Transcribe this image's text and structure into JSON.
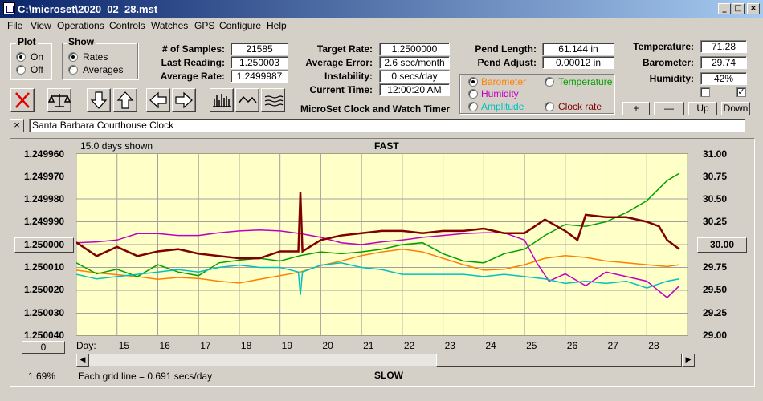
{
  "window": {
    "title": "C:\\microset\\2020_02_28.mst",
    "minimize": "_",
    "maximize": "□",
    "close": "×"
  },
  "menu": [
    "File",
    "View",
    "Operations",
    "Controls",
    "Watches",
    "GPS",
    "Configure",
    "Help"
  ],
  "plot_group": {
    "title": "Plot",
    "on": "On",
    "off": "Off",
    "selected": "On"
  },
  "show_group": {
    "title": "Show",
    "rates": "Rates",
    "averages": "Averages",
    "selected": "Rates"
  },
  "stats": {
    "samples_label": "# of Samples:",
    "samples": "21585",
    "last_reading_label": "Last Reading:",
    "last_reading": "1.250003",
    "avg_rate_label": "Average Rate:",
    "avg_rate": "1.2499987",
    "target_rate_label": "Target Rate:",
    "target_rate": "1.2500000",
    "avg_error_label": "Average Error:",
    "avg_error": "2.6 sec/month",
    "instability_label": "Instability:",
    "instability": "0 secs/day",
    "current_time_label": "Current Time:",
    "current_time": "12:00:20 AM",
    "pend_length_label": "Pend Length:",
    "pend_length": "61.144 in",
    "pend_adjust_label": "Pend Adjust:",
    "pend_adjust": "0.00012 in",
    "temperature_label": "Temperature:",
    "temperature": "71.28",
    "barometer_label": "Barometer:",
    "barometer": "29.74",
    "humidity_label": "Humidity:",
    "humidity": "42%"
  },
  "app_name": "MicroSet Clock and Watch Timer",
  "overlay_options": {
    "barometer": {
      "label": "Barometer",
      "color": "#ff8000",
      "selected": true
    },
    "temperature": {
      "label": "Temperature",
      "color": "#00a000",
      "selected": false
    },
    "humidity": {
      "label": "Humidity",
      "color": "#c000c0",
      "selected": false
    },
    "amplitude": {
      "label": "Amplitude",
      "color": "#00c0c0",
      "selected": false
    },
    "clock_rate": {
      "label": "Clock rate",
      "color": "#800000",
      "selected": false
    }
  },
  "scale_buttons": {
    "plus": "+",
    "minus": "—",
    "up": "Up",
    "down": "Down"
  },
  "checkboxes": {
    "left": false,
    "right": true,
    "right_mark": "✓"
  },
  "clock_name": "Santa Barbara Courthouse Clock",
  "clear_x": "×",
  "graph": {
    "days_shown": "15.0 days shown",
    "fast": "FAST",
    "slow": "SLOW",
    "center_value": "1.250000",
    "right_center_value": "30.00",
    "offset_value": "0",
    "footer_pct": "1.69%",
    "grid_note": "Each grid line = 0.691 secs/day",
    "day_label": "Day:"
  },
  "chart_data": {
    "type": "line",
    "x_label": "Day",
    "x_ticks": [
      "15",
      "16",
      "17",
      "18",
      "19",
      "20",
      "21",
      "22",
      "23",
      "24",
      "25",
      "26",
      "27",
      "28"
    ],
    "xlim": [
      14.0,
      29.0
    ],
    "y_left_ticks": [
      "1.249960",
      "1.249970",
      "1.249980",
      "1.249990",
      "",
      "1.250010",
      "1.250020",
      "1.250030",
      "1.250040"
    ],
    "ylim_left": [
      1.24996,
      1.25004
    ],
    "y_right_ticks": [
      "31.00",
      "30.75",
      "30.50",
      "30.25",
      "",
      "29.75",
      "29.50",
      "29.25",
      "29.00"
    ],
    "ylim_right": [
      31.0,
      29.0
    ],
    "grid": true,
    "series": [
      {
        "name": "Barometer",
        "color": "#ff8000",
        "axis": "right",
        "x": [
          14.0,
          14.5,
          15.0,
          15.5,
          16.0,
          16.5,
          17.0,
          17.5,
          18.0,
          18.5,
          19.0,
          19.5,
          20.0,
          20.5,
          21.0,
          21.5,
          22.0,
          22.5,
          23.0,
          23.5,
          24.0,
          24.5,
          25.0,
          25.5,
          26.0,
          26.5,
          27.0,
          27.5,
          28.0,
          28.5,
          28.8
        ],
        "y": [
          29.72,
          29.69,
          29.67,
          29.65,
          29.62,
          29.64,
          29.63,
          29.6,
          29.58,
          29.62,
          29.66,
          29.7,
          29.77,
          29.82,
          29.88,
          29.92,
          29.95,
          29.92,
          29.85,
          29.78,
          29.72,
          29.73,
          29.78,
          29.85,
          29.88,
          29.86,
          29.82,
          29.8,
          29.78,
          29.76,
          29.78
        ]
      },
      {
        "name": "Temperature",
        "color": "#00a000",
        "axis": "right",
        "x": [
          14.0,
          14.5,
          15.0,
          15.5,
          16.0,
          16.5,
          17.0,
          17.5,
          18.0,
          18.5,
          19.0,
          19.5,
          20.0,
          20.5,
          21.0,
          21.5,
          22.0,
          22.5,
          23.0,
          23.5,
          24.0,
          24.5,
          25.0,
          25.5,
          26.0,
          26.5,
          27.0,
          27.5,
          28.0,
          28.5,
          28.8
        ],
        "y": [
          29.8,
          29.68,
          29.73,
          29.65,
          29.78,
          29.7,
          29.66,
          29.8,
          29.83,
          29.85,
          29.82,
          29.88,
          29.92,
          29.9,
          29.92,
          29.95,
          30.0,
          30.02,
          29.9,
          29.82,
          29.8,
          29.9,
          29.95,
          30.1,
          30.22,
          30.2,
          30.25,
          30.35,
          30.48,
          30.7,
          30.78
        ]
      },
      {
        "name": "Humidity",
        "color": "#c000c0",
        "axis": "right",
        "x": [
          14.0,
          14.5,
          15.0,
          15.5,
          16.0,
          16.5,
          17.0,
          17.5,
          18.0,
          18.5,
          19.0,
          19.5,
          20.0,
          20.5,
          21.0,
          21.5,
          22.0,
          22.5,
          23.0,
          23.5,
          24.0,
          24.5,
          25.0,
          25.3,
          25.6,
          26.0,
          26.5,
          27.0,
          27.5,
          28.0,
          28.5,
          28.8
        ],
        "y": [
          30.02,
          30.03,
          30.05,
          30.12,
          30.12,
          30.1,
          30.1,
          30.13,
          30.15,
          30.16,
          30.15,
          30.12,
          30.08,
          30.02,
          30.0,
          30.03,
          30.05,
          30.08,
          30.1,
          30.12,
          30.13,
          30.13,
          30.05,
          29.8,
          29.6,
          29.68,
          29.55,
          29.7,
          29.65,
          29.6,
          29.42,
          29.55
        ]
      },
      {
        "name": "Amplitude",
        "color": "#00c0c0",
        "axis": "left",
        "x": [
          14.0,
          14.5,
          15.0,
          15.5,
          16.0,
          16.5,
          17.0,
          17.5,
          18.0,
          18.5,
          19.0,
          19.45,
          19.5,
          19.55,
          20.0,
          20.5,
          21.0,
          21.5,
          22.0,
          22.5,
          23.0,
          23.5,
          24.0,
          24.5,
          25.0,
          25.5,
          26.0,
          26.5,
          27.0,
          27.5,
          28.0,
          28.5,
          28.8
        ],
        "y": [
          1.250013,
          1.250015,
          1.250014,
          1.250013,
          1.250012,
          1.250011,
          1.250012,
          1.25001,
          1.250009,
          1.25001,
          1.25001,
          1.250012,
          1.250022,
          1.250012,
          1.250009,
          1.250008,
          1.25001,
          1.250011,
          1.250013,
          1.250013,
          1.250013,
          1.250013,
          1.250014,
          1.250013,
          1.250014,
          1.250015,
          1.250017,
          1.250016,
          1.250017,
          1.250016,
          1.250019,
          1.250016,
          1.250015
        ]
      },
      {
        "name": "Clock rate",
        "color": "#800000",
        "axis": "left",
        "x": [
          14.0,
          14.5,
          15.0,
          15.5,
          16.0,
          16.5,
          17.0,
          17.5,
          18.0,
          18.5,
          19.0,
          19.45,
          19.5,
          19.55,
          20.0,
          20.5,
          21.0,
          21.5,
          22.0,
          22.5,
          23.0,
          23.5,
          24.0,
          24.5,
          25.0,
          25.5,
          26.0,
          26.3,
          26.5,
          27.0,
          27.5,
          28.0,
          28.3,
          28.5,
          28.8
        ],
        "y": [
          1.249999,
          1.250005,
          1.250001,
          1.250005,
          1.250003,
          1.250002,
          1.250004,
          1.250005,
          1.250006,
          1.250006,
          1.250003,
          1.250003,
          1.249977,
          1.250003,
          1.249998,
          1.249996,
          1.249995,
          1.249994,
          1.249994,
          1.249995,
          1.249994,
          1.249994,
          1.249993,
          1.249995,
          1.249995,
          1.249989,
          1.249994,
          1.249998,
          1.249987,
          1.249988,
          1.249988,
          1.24999,
          1.249992,
          1.249998,
          1.250002
        ]
      }
    ]
  },
  "icons": {
    "app": "app-icon",
    "reset": "x-icon",
    "balance": "balance-icon",
    "down": "down-arrow-icon",
    "up": "up-arrow-icon",
    "left": "left-arrow-icon",
    "right": "right-arrow-icon",
    "bars": "bar-graph-icon",
    "wave": "wave-icon",
    "lines": "lines-icon"
  }
}
